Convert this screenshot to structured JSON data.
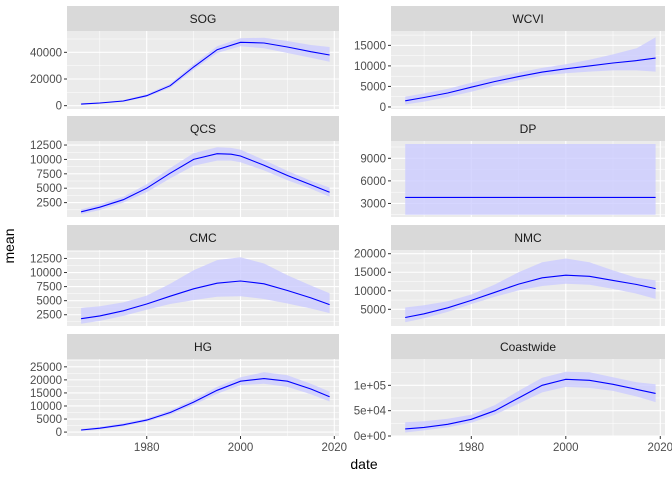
{
  "chart_data": {
    "type": "line",
    "xlabel": "date",
    "ylabel": "mean",
    "xlim": [
      1963,
      2021
    ],
    "x_ticks": [
      1980,
      2000,
      2020
    ],
    "x_tick_labels": [
      "1980",
      "2000",
      "2020"
    ],
    "grid": true,
    "line_color": "#0000ff",
    "ribbon_color": "#ccccff",
    "panels": [
      {
        "title": "SOG",
        "ylim": [
          -2500,
          56000
        ],
        "y_ticks": [
          0,
          20000,
          40000
        ],
        "y_tick_labels": [
          "0",
          "20000",
          "40000"
        ],
        "x": [
          1966,
          1970,
          1975,
          1980,
          1985,
          1990,
          1995,
          2000,
          2005,
          2010,
          2015,
          2019
        ],
        "mean": [
          1200,
          2000,
          3500,
          7500,
          15000,
          29000,
          42000,
          47500,
          47000,
          44000,
          40500,
          38000
        ],
        "lower": [
          700,
          1400,
          2800,
          6500,
          13500,
          27000,
          39500,
          44500,
          43000,
          39500,
          36000,
          33000
        ],
        "upper": [
          1700,
          2600,
          4200,
          8500,
          16500,
          31000,
          44500,
          50500,
          51000,
          48500,
          45500,
          44000
        ]
      },
      {
        "title": "WCVI",
        "ylim": [
          -500,
          18500
        ],
        "y_ticks": [
          0,
          5000,
          10000,
          15000
        ],
        "y_tick_labels": [
          "0",
          "5000",
          "10000",
          "15000"
        ],
        "x": [
          1966,
          1970,
          1975,
          1980,
          1985,
          1990,
          1995,
          2000,
          2005,
          2010,
          2015,
          2019
        ],
        "mean": [
          1500,
          2300,
          3400,
          4800,
          6200,
          7400,
          8500,
          9300,
          10000,
          10700,
          11300,
          11900
        ],
        "lower": [
          600,
          1300,
          2400,
          3700,
          5200,
          6500,
          7600,
          8200,
          8600,
          8900,
          8900,
          8600
        ],
        "upper": [
          2500,
          3300,
          4400,
          5900,
          7300,
          8400,
          9500,
          10400,
          11500,
          12800,
          14300,
          17000
        ]
      },
      {
        "title": "QCS",
        "ylim": [
          0,
          13200
        ],
        "y_ticks": [
          2500,
          5000,
          7500,
          10000,
          12500
        ],
        "y_tick_labels": [
          "2500",
          "5000",
          "7500",
          "10000",
          "12500"
        ],
        "x": [
          1966,
          1970,
          1975,
          1980,
          1985,
          1990,
          1995,
          1998,
          2000,
          2005,
          2010,
          2015,
          2019
        ],
        "mean": [
          900,
          1700,
          3000,
          5000,
          7600,
          10000,
          11000,
          10900,
          10600,
          9000,
          7200,
          5600,
          4300
        ],
        "lower": [
          500,
          1200,
          2500,
          4300,
          6700,
          8900,
          9800,
          9800,
          9500,
          8100,
          6400,
          4900,
          3500
        ],
        "upper": [
          1300,
          2200,
          3500,
          5700,
          8500,
          11100,
          12100,
          12000,
          11700,
          9900,
          8000,
          6300,
          5100
        ]
      },
      {
        "title": "DP",
        "ylim": [
          1200,
          11300
        ],
        "y_ticks": [
          3000,
          6000,
          9000
        ],
        "y_tick_labels": [
          "3000",
          "6000",
          "9000"
        ],
        "x": [
          1966,
          2019
        ],
        "mean": [
          3800,
          3800
        ],
        "lower": [
          1500,
          1500
        ],
        "upper": [
          10900,
          10900
        ]
      },
      {
        "title": "CMC",
        "ylim": [
          500,
          14000
        ],
        "y_ticks": [
          2500,
          5000,
          7500,
          10000,
          12500
        ],
        "y_tick_labels": [
          "2500",
          "5000",
          "7500",
          "10000",
          "12500"
        ],
        "x": [
          1966,
          1970,
          1975,
          1980,
          1985,
          1990,
          1995,
          2000,
          2005,
          2010,
          2015,
          2019
        ],
        "mean": [
          1800,
          2300,
          3200,
          4400,
          5800,
          7100,
          8100,
          8500,
          8000,
          6800,
          5500,
          4300
        ],
        "lower": [
          900,
          1400,
          2300,
          3400,
          4400,
          5100,
          5700,
          5800,
          5300,
          4500,
          3600,
          2800
        ],
        "upper": [
          3700,
          4000,
          4700,
          5900,
          8000,
          10400,
          12200,
          12700,
          11600,
          9500,
          7700,
          6300
        ]
      },
      {
        "title": "NMC",
        "ylim": [
          500,
          21000
        ],
        "y_ticks": [
          5000,
          10000,
          15000,
          20000
        ],
        "y_tick_labels": [
          "5000",
          "10000",
          "15000",
          "20000"
        ],
        "x": [
          1966,
          1970,
          1975,
          1980,
          1985,
          1990,
          1995,
          2000,
          2005,
          2010,
          2015,
          2019
        ],
        "mean": [
          2800,
          3800,
          5400,
          7400,
          9600,
          11800,
          13500,
          14200,
          13900,
          12800,
          11700,
          10600
        ],
        "lower": [
          1500,
          2600,
          4300,
          6400,
          8400,
          10100,
          11300,
          11900,
          11600,
          10500,
          9200,
          7800
        ],
        "upper": [
          5500,
          6100,
          7200,
          9000,
          11700,
          15000,
          17700,
          18700,
          17700,
          15500,
          13500,
          12800
        ]
      },
      {
        "title": "HG",
        "ylim": [
          -1500,
          28000
        ],
        "y_ticks": [
          0,
          5000,
          10000,
          15000,
          20000,
          25000
        ],
        "y_tick_labels": [
          "0",
          "5000",
          "10000",
          "15000",
          "20000",
          "25000"
        ],
        "x": [
          1966,
          1970,
          1975,
          1980,
          1985,
          1990,
          1995,
          2000,
          2005,
          2010,
          2015,
          2019
        ],
        "mean": [
          800,
          1500,
          2800,
          4600,
          7500,
          11500,
          16000,
          19500,
          20500,
          19500,
          16500,
          13500
        ],
        "lower": [
          400,
          1000,
          2200,
          4000,
          6700,
          10400,
          14700,
          18000,
          18500,
          17300,
          14500,
          11700
        ],
        "upper": [
          1200,
          2000,
          3400,
          5200,
          8300,
          12600,
          17300,
          21000,
          23000,
          21800,
          18500,
          15500
        ]
      },
      {
        "title": "Coastwide",
        "ylim": [
          0,
          152000
        ],
        "y_ticks": [
          0,
          50000,
          100000
        ],
        "y_tick_labels": [
          "0e+00",
          "5e+04",
          "1e+05"
        ],
        "x": [
          1966,
          1970,
          1975,
          1980,
          1985,
          1990,
          1995,
          2000,
          2005,
          2010,
          2015,
          2019
        ],
        "mean": [
          14000,
          17000,
          23000,
          33000,
          50000,
          75000,
          100000,
          112000,
          110000,
          102000,
          92000,
          84000
        ],
        "lower": [
          7000,
          11000,
          17000,
          26000,
          42000,
          64000,
          86000,
          97000,
          95000,
          89000,
          78000,
          67000
        ],
        "upper": [
          27000,
          29000,
          34000,
          42000,
          61000,
          89000,
          115000,
          127000,
          126000,
          116000,
          106000,
          102000
        ]
      }
    ]
  }
}
